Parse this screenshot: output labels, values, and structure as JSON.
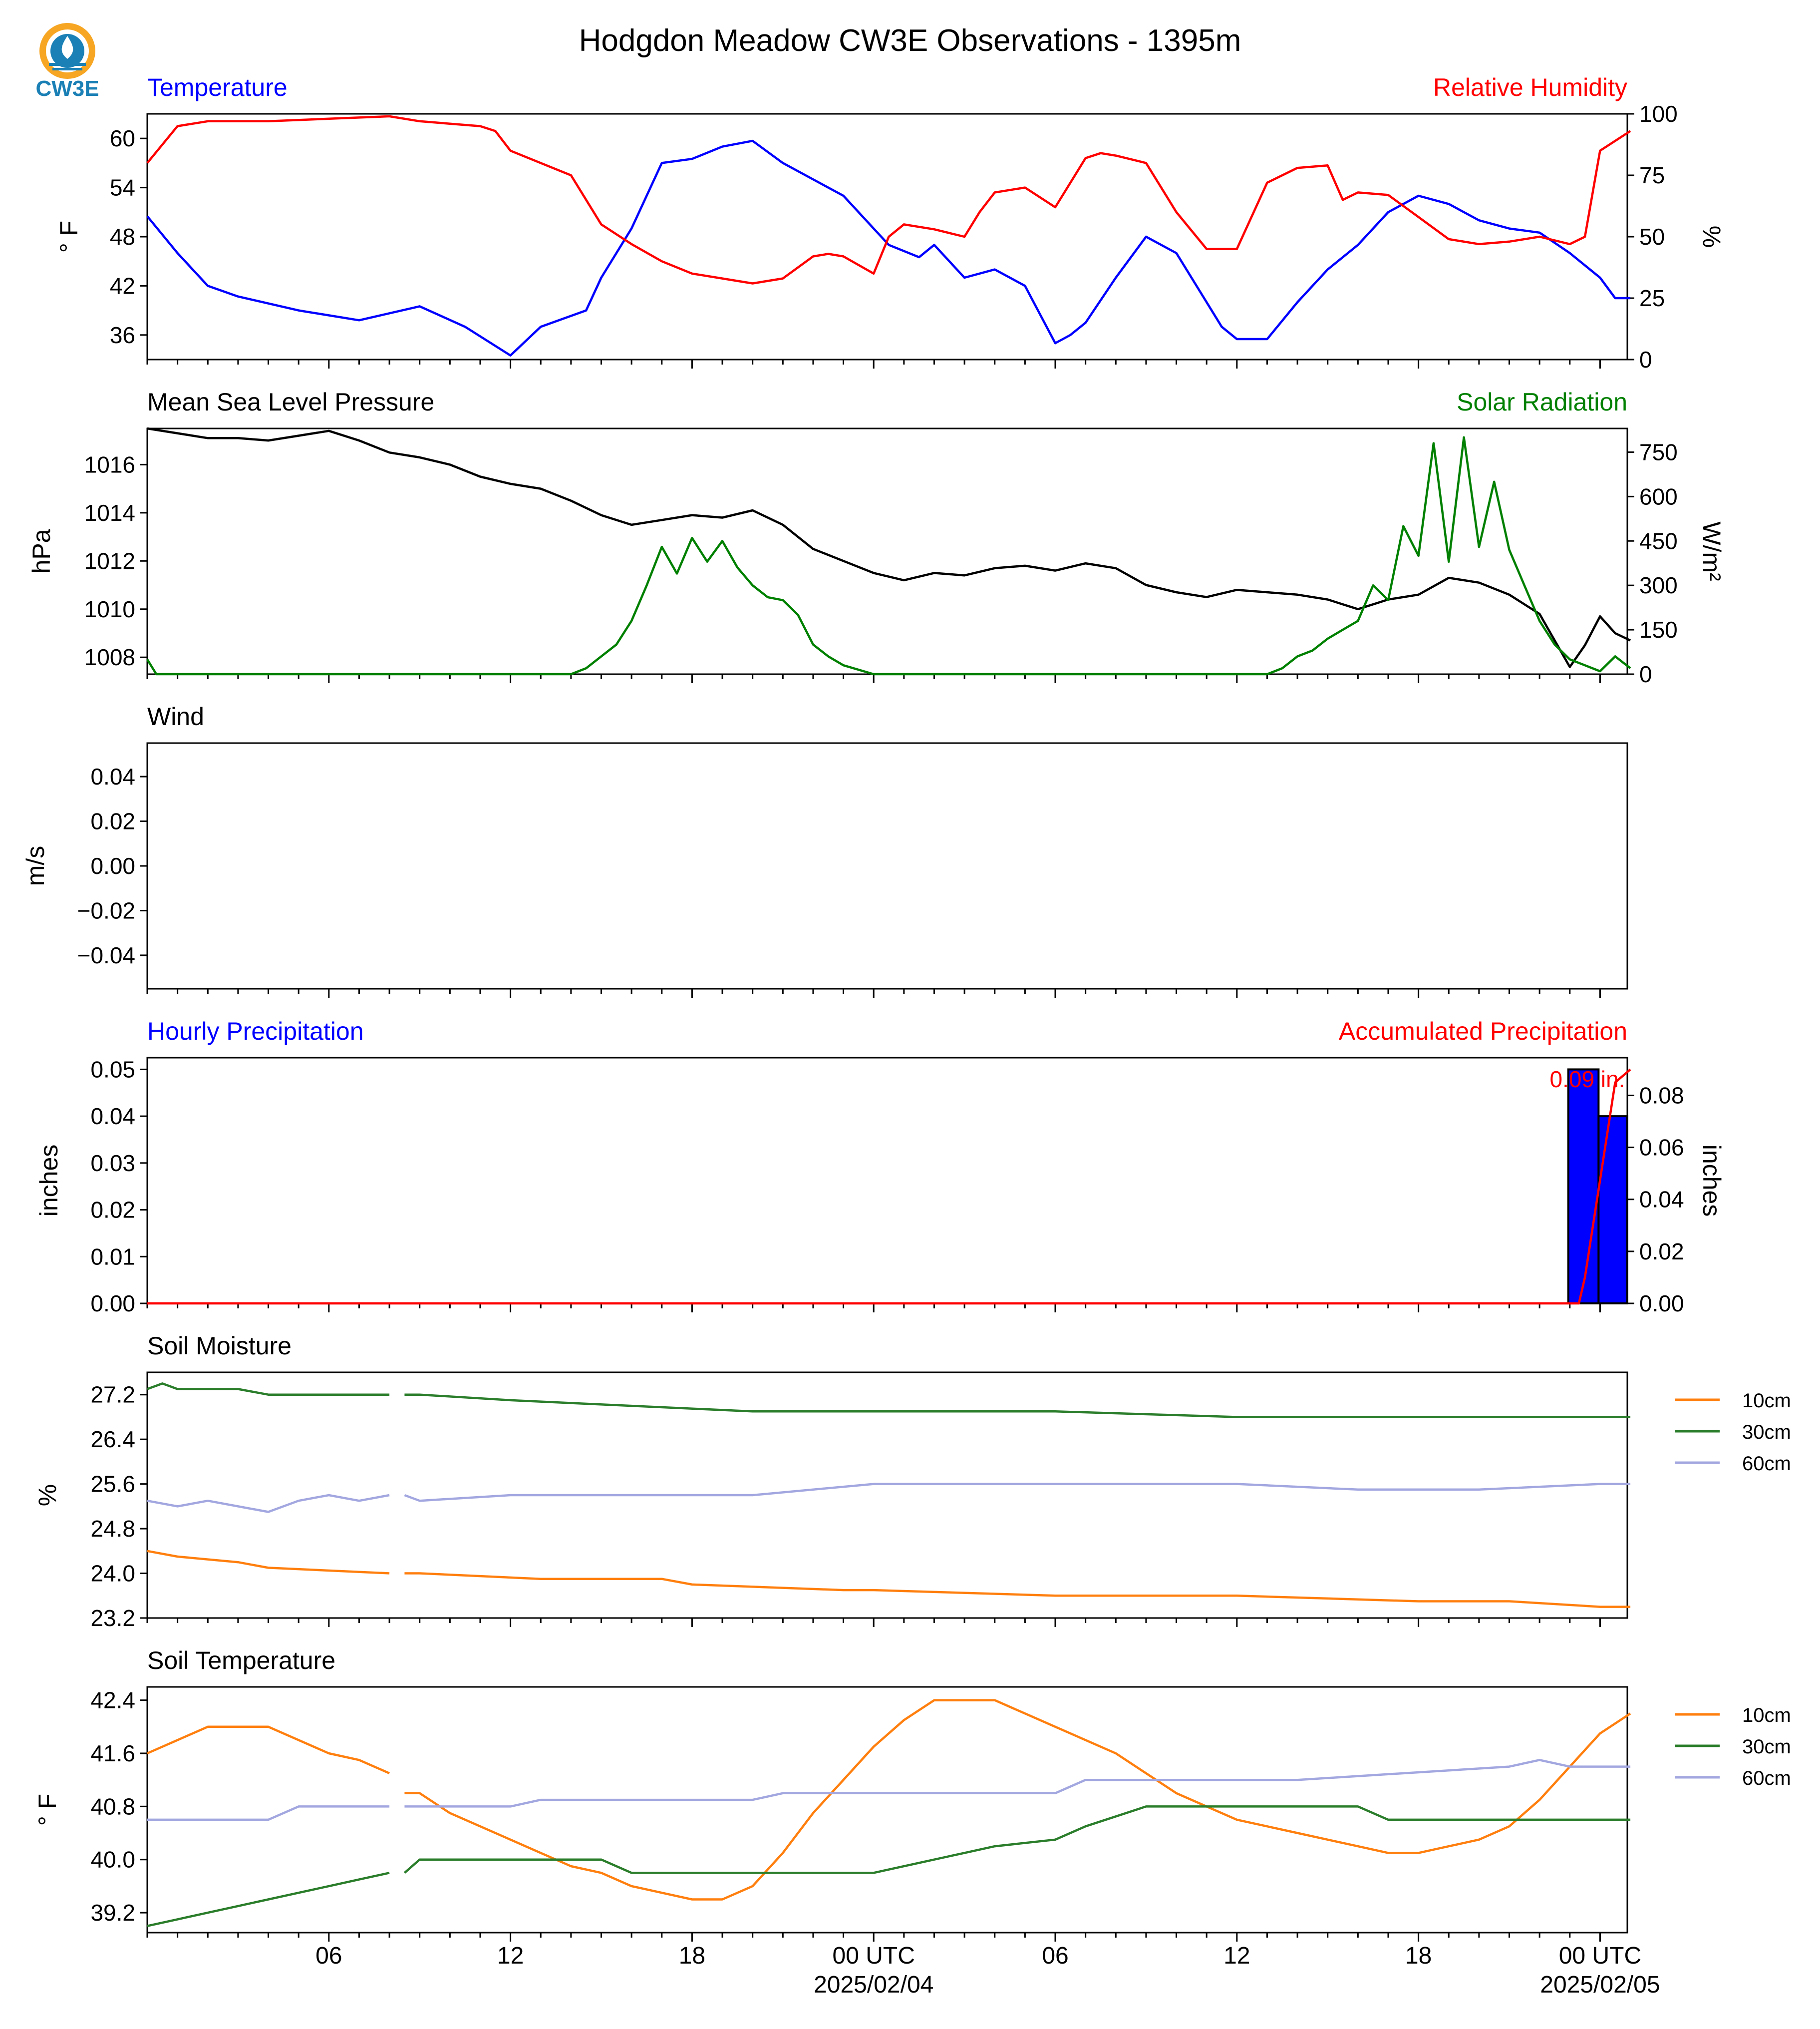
{
  "title": "Hodgdon Meadow CW3E Observations - 1395m",
  "logo": {
    "text": "CW3E",
    "icon": "cw3e-logo-icon"
  },
  "colors": {
    "temp": "#0000ff",
    "rh": "#ff0000",
    "pressure": "#000000",
    "solar": "#008000",
    "hourly": "#0000ff",
    "accum": "#ff0000",
    "soil10": "#ff7f0e",
    "soil30": "#2a7d2a",
    "soil60": "#a3a7e0"
  },
  "x_axis": {
    "start": "2025-02-03T00:00Z",
    "end": "2025-02-05T01:00Z",
    "tick_labels": [
      "06",
      "12",
      "18",
      "00 UTC",
      "06",
      "12",
      "18",
      "00 UTC"
    ],
    "date_labels": [
      "2025/02/04",
      "2025/02/05"
    ]
  },
  "panel_titles": {
    "p1_left": "Temperature",
    "p1_right": "Relative Humidity",
    "p2_left": "Mean Sea Level Pressure",
    "p2_right": "Solar Radiation",
    "p3_left": "Wind",
    "p4_left": "Hourly Precipitation",
    "p4_right": "Accumulated Precipitation",
    "p5_left": "Soil Moisture",
    "p6_left": "Soil Temperature"
  },
  "axis_labels": {
    "p1_left": "° F",
    "p1_right": "%",
    "p2_left": "hPa",
    "p2_right": "W/m²",
    "p3_left": "m/s",
    "p4_left": "inches",
    "p4_right": "inches",
    "p5_left": "%",
    "p6_left": "° F"
  },
  "legend": {
    "soil_moisture": [
      "10cm",
      "30cm",
      "60cm"
    ],
    "soil_temperature": [
      "10cm",
      "30cm",
      "60cm"
    ]
  },
  "annotation": {
    "accum_total": "0.09 in."
  },
  "chart_data": [
    {
      "type": "line",
      "panel": "temperature_rh",
      "left_axis": {
        "ylim": [
          33,
          63
        ],
        "ticks": [
          "60",
          "54",
          "48",
          "42",
          "36"
        ]
      },
      "right_axis": {
        "ylim": [
          0,
          100
        ],
        "ticks": [
          "100",
          "75",
          "50",
          "25",
          "0"
        ]
      },
      "series": [
        {
          "key": "temp",
          "axis": "left",
          "x": [
            0,
            1,
            2,
            3,
            5,
            7,
            9,
            10.5,
            12,
            13,
            14.5,
            15,
            15.5,
            16,
            17,
            18,
            19,
            20,
            21,
            22,
            23,
            24,
            24.5,
            25.5,
            26,
            27,
            28,
            29,
            30,
            30.5,
            31,
            32,
            33,
            34,
            35,
            35.5,
            36,
            37,
            38,
            39,
            40,
            41,
            42,
            43,
            44,
            45,
            46,
            47,
            48,
            48.5,
            49
          ],
          "y": [
            50.5,
            46,
            42,
            40.7,
            39,
            37.8,
            39.5,
            37,
            33.5,
            37,
            39,
            43,
            46,
            49,
            57,
            57.5,
            59,
            59.7,
            57,
            55,
            53,
            49,
            47,
            45.5,
            47,
            43,
            44,
            42,
            35,
            36,
            37.5,
            43,
            48,
            46,
            40,
            37,
            35.5,
            35.5,
            40,
            44,
            47,
            51,
            53,
            52,
            50,
            49,
            48.5,
            46,
            43,
            40.5,
            40.5
          ]
        },
        {
          "key": "rh",
          "axis": "right",
          "x": [
            0,
            1,
            2,
            4,
            6,
            8,
            9,
            10,
            11,
            11.5,
            12,
            13,
            14,
            15,
            16,
            17,
            18,
            19,
            20,
            21,
            22,
            22.5,
            23,
            24,
            24.5,
            25,
            26,
            27,
            27.5,
            28,
            29,
            30,
            31,
            31.5,
            32,
            33,
            34,
            35,
            36,
            37,
            38,
            39,
            39.5,
            40,
            41,
            42,
            43,
            44,
            45,
            46,
            47,
            47.5,
            48,
            48.5,
            49
          ],
          "y": [
            80,
            95,
            97,
            97,
            98,
            99,
            97,
            96,
            95,
            93,
            85,
            80,
            75,
            55,
            47,
            40,
            35,
            33,
            31,
            33,
            42,
            43,
            42,
            35,
            50,
            55,
            53,
            50,
            60,
            68,
            70,
            62,
            82,
            84,
            83,
            80,
            60,
            45,
            45,
            72,
            78,
            79,
            65,
            68,
            67,
            58,
            49,
            47,
            48,
            50,
            47,
            50,
            85,
            89,
            93
          ]
        }
      ]
    },
    {
      "type": "line",
      "panel": "pressure_solar",
      "left_axis": {
        "ylim": [
          1007.3,
          1017.5
        ],
        "ticks": [
          "1016",
          "1014",
          "1012",
          "1010",
          "1008"
        ]
      },
      "right_axis": {
        "ylim": [
          0,
          830
        ],
        "ticks": [
          "750",
          "600",
          "450",
          "300",
          "150",
          "0"
        ]
      },
      "series": [
        {
          "key": "pressure",
          "axis": "left",
          "x": [
            0,
            1,
            2,
            3,
            4,
            5,
            6,
            7,
            8,
            9,
            10,
            11,
            12,
            13,
            14,
            15,
            16,
            17,
            18,
            19,
            20,
            21,
            22,
            23,
            24,
            25,
            26,
            27,
            28,
            29,
            30,
            31,
            32,
            33,
            34,
            35,
            36,
            37,
            38,
            39,
            40,
            41,
            42,
            43,
            44,
            45,
            46,
            46.5,
            47,
            47.5,
            48,
            48.5,
            49
          ],
          "y": [
            1017.5,
            1017.3,
            1017.1,
            1017.1,
            1017,
            1017.2,
            1017.4,
            1017,
            1016.5,
            1016.3,
            1016,
            1015.5,
            1015.2,
            1015,
            1014.5,
            1013.9,
            1013.5,
            1013.7,
            1013.9,
            1013.8,
            1014.1,
            1013.5,
            1012.5,
            1012,
            1011.5,
            1011.2,
            1011.5,
            1011.4,
            1011.7,
            1011.8,
            1011.6,
            1011.9,
            1011.7,
            1011,
            1010.7,
            1010.5,
            1010.8,
            1010.7,
            1010.6,
            1010.4,
            1010,
            1010.4,
            1010.6,
            1011.3,
            1011.1,
            1010.6,
            1009.8,
            1008.7,
            1007.6,
            1008.5,
            1009.7,
            1009,
            1008.7
          ]
        },
        {
          "key": "solar",
          "axis": "right",
          "x": [
            0,
            0.3,
            1,
            14,
            14.5,
            15,
            15.5,
            16,
            16.5,
            17,
            17.5,
            18,
            18.5,
            19,
            19.5,
            20,
            20.5,
            21,
            21.5,
            22,
            22.5,
            23,
            24,
            25,
            26,
            37,
            37.5,
            38,
            38.5,
            39,
            39.5,
            40,
            40.5,
            41,
            41.5,
            42,
            42.5,
            43,
            43.5,
            44,
            44.5,
            45,
            45.5,
            46,
            46.5,
            47,
            47.5,
            48,
            48.5,
            49
          ],
          "y": [
            50,
            0,
            0,
            0,
            20,
            60,
            100,
            180,
            300,
            430,
            340,
            460,
            380,
            450,
            360,
            300,
            260,
            250,
            200,
            100,
            60,
            30,
            0,
            0,
            0,
            0,
            20,
            60,
            80,
            120,
            150,
            180,
            300,
            250,
            500,
            400,
            780,
            380,
            800,
            430,
            650,
            420,
            300,
            180,
            100,
            50,
            30,
            10,
            60,
            20
          ]
        }
      ]
    },
    {
      "type": "line",
      "panel": "wind",
      "left_axis": {
        "ylim": [
          -0.055,
          0.055
        ],
        "ticks": [
          "0.04",
          "0.02",
          "0.00",
          "−0.02",
          "−0.04"
        ]
      },
      "series": []
    },
    {
      "type": "bar",
      "panel": "precipitation",
      "left_axis": {
        "ylim": [
          0,
          0.0525
        ],
        "ticks": [
          "0.05",
          "0.04",
          "0.03",
          "0.02",
          "0.01",
          "0.00"
        ]
      },
      "right_axis": {
        "ylim": [
          0,
          0.0945
        ],
        "ticks": [
          "0.08",
          "0.06",
          "0.04",
          "0.02",
          "0.00"
        ]
      },
      "bars": {
        "x": [
          47,
          48
        ],
        "values": [
          0.05,
          0.04
        ]
      },
      "series": [
        {
          "key": "accum",
          "axis": "right",
          "x": [
            0,
            47.3,
            47.5,
            47.7,
            47.9,
            48.1,
            48.3,
            48.5,
            49
          ],
          "y": [
            0,
            0,
            0.01,
            0.025,
            0.04,
            0.055,
            0.07,
            0.085,
            0.09
          ]
        }
      ]
    },
    {
      "type": "line",
      "panel": "soil_moisture",
      "left_axis": {
        "ylim": [
          23.2,
          27.6
        ],
        "ticks": [
          "27.2",
          "26.4",
          "25.6",
          "24.8",
          "24.0",
          "23.2"
        ]
      },
      "series": [
        {
          "key": "soil10",
          "name": "10cm",
          "x": [
            0,
            1,
            3,
            4,
            8,
            8.5,
            9,
            13,
            17,
            18,
            23,
            24,
            30,
            36,
            42,
            45,
            48,
            49
          ],
          "y": [
            24.4,
            24.3,
            24.2,
            24.1,
            24.0,
            24.0,
            24.0,
            23.9,
            23.9,
            23.8,
            23.7,
            23.7,
            23.6,
            23.6,
            23.5,
            23.5,
            23.4,
            23.4
          ]
        },
        {
          "key": "soil30",
          "name": "30cm",
          "x": [
            0,
            0.5,
            1,
            3,
            4,
            8,
            8.5,
            9,
            12,
            16,
            20,
            24,
            30,
            36,
            42,
            47,
            49
          ],
          "y": [
            27.3,
            27.4,
            27.3,
            27.3,
            27.2,
            27.2,
            27.2,
            27.2,
            27.1,
            27.0,
            26.9,
            26.9,
            26.9,
            26.8,
            26.8,
            26.8,
            26.8
          ]
        },
        {
          "key": "soil60",
          "name": "60cm",
          "x": [
            0,
            1,
            2,
            3,
            4,
            5,
            6,
            7,
            8,
            8.5,
            9,
            12,
            16,
            20,
            24,
            28,
            32,
            36,
            40,
            44,
            48,
            49
          ],
          "y": [
            25.3,
            25.2,
            25.3,
            25.2,
            25.1,
            25.3,
            25.4,
            25.3,
            25.4,
            25.4,
            25.3,
            25.4,
            25.4,
            25.4,
            25.6,
            25.6,
            25.6,
            25.6,
            25.5,
            25.5,
            25.6,
            25.6
          ]
        }
      ]
    },
    {
      "type": "line",
      "panel": "soil_temperature",
      "left_axis": {
        "ylim": [
          38.9,
          42.6
        ],
        "ticks": [
          "42.4",
          "41.6",
          "40.8",
          "40.0",
          "39.2"
        ]
      },
      "series": [
        {
          "key": "soil10",
          "name": "10cm",
          "x": [
            0,
            1,
            2,
            4,
            5,
            6,
            7,
            8,
            8.5,
            9,
            10,
            11,
            12,
            13,
            14,
            15,
            16,
            17,
            18,
            19,
            20,
            21,
            22,
            23,
            24,
            25,
            26,
            27,
            28,
            29,
            30,
            31,
            32,
            33,
            34,
            35,
            36,
            37,
            38,
            39,
            40,
            41,
            42,
            43,
            44,
            45,
            46,
            47,
            48,
            49
          ],
          "y": [
            41.6,
            41.8,
            42.0,
            42.0,
            41.8,
            41.6,
            41.5,
            41.3,
            41.0,
            41.0,
            40.7,
            40.5,
            40.3,
            40.1,
            39.9,
            39.8,
            39.6,
            39.5,
            39.4,
            39.4,
            39.6,
            40.1,
            40.7,
            41.2,
            41.7,
            42.1,
            42.4,
            42.4,
            42.4,
            42.2,
            42.0,
            41.8,
            41.6,
            41.3,
            41.0,
            40.8,
            40.6,
            40.5,
            40.4,
            40.3,
            40.2,
            40.1,
            40.1,
            40.2,
            40.3,
            40.5,
            40.9,
            41.4,
            41.9,
            42.2
          ]
        },
        {
          "key": "soil30",
          "name": "30cm",
          "x": [
            0,
            1,
            2,
            3,
            4,
            5,
            6,
            7,
            8,
            8.5,
            9,
            12,
            15,
            16,
            20,
            23,
            24,
            26,
            27,
            28,
            30,
            31,
            33,
            35,
            40,
            41,
            45,
            49
          ],
          "y": [
            39.0,
            39.1,
            39.2,
            39.3,
            39.4,
            39.5,
            39.6,
            39.7,
            39.8,
            39.8,
            40.0,
            40.0,
            40.0,
            39.8,
            39.8,
            39.8,
            39.8,
            40.0,
            40.1,
            40.2,
            40.3,
            40.5,
            40.8,
            40.8,
            40.8,
            40.6,
            40.6,
            40.6
          ]
        },
        {
          "key": "soil60",
          "name": "60cm",
          "x": [
            0,
            4,
            5,
            8,
            8.5,
            9,
            12,
            13,
            20,
            21,
            24,
            30,
            31,
            36,
            38,
            45,
            46,
            47,
            49
          ],
          "y": [
            40.6,
            40.6,
            40.8,
            40.8,
            40.8,
            40.8,
            40.8,
            40.9,
            40.9,
            41.0,
            41.0,
            41.0,
            41.2,
            41.2,
            41.2,
            41.4,
            41.5,
            41.4,
            41.4
          ]
        }
      ]
    }
  ]
}
